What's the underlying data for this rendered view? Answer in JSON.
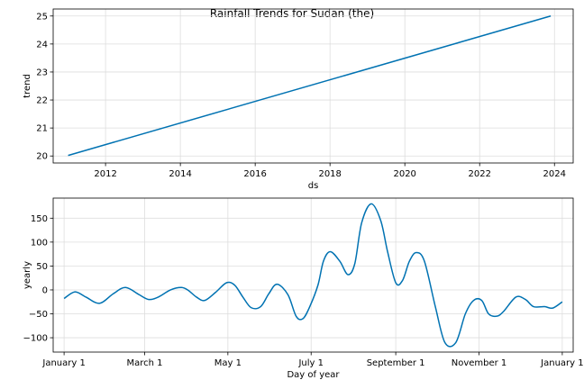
{
  "title": "Rainfall Trends for Sudan (the)",
  "colors": {
    "line": "#0072B2",
    "grid": "#dddddd",
    "axis": "#000000"
  },
  "chart_data": [
    {
      "type": "line",
      "xlabel": "ds",
      "ylabel": "trend",
      "xlim": [
        2010.6,
        2024.5
      ],
      "ylim": [
        19.75,
        25.25
      ],
      "grid": true,
      "x_ticks": [
        2012,
        2014,
        2016,
        2018,
        2020,
        2022,
        2024
      ],
      "x_tick_labels": [
        "2012",
        "2014",
        "2016",
        "2018",
        "2020",
        "2022",
        "2024"
      ],
      "y_ticks": [
        20,
        21,
        22,
        23,
        24,
        25
      ],
      "y_tick_labels": [
        "20",
        "21",
        "22",
        "23",
        "24",
        "25"
      ],
      "series": [
        {
          "x": [
            2011.0,
            2023.9
          ],
          "y": [
            20.02,
            25.0
          ]
        }
      ]
    },
    {
      "type": "line",
      "xlabel": "Day of year",
      "ylabel": "yearly",
      "xlim": [
        -8,
        373
      ],
      "ylim": [
        -130,
        192
      ],
      "grid": true,
      "x_ticks": [
        0,
        59,
        120,
        181,
        243,
        304,
        365
      ],
      "x_tick_labels": [
        "January 1",
        "March 1",
        "May 1",
        "July 1",
        "September 1",
        "November 1",
        "January 1"
      ],
      "y_ticks": [
        -100,
        -50,
        0,
        50,
        100,
        150
      ],
      "y_tick_labels": [
        "−100",
        "−50",
        "0",
        "50",
        "100",
        "150"
      ],
      "series": [
        {
          "x": [
            0,
            8,
            16,
            26,
            36,
            45,
            55,
            62,
            69,
            78,
            86,
            91,
            97,
            103,
            111,
            119,
            125,
            131,
            137,
            144,
            150,
            156,
            164,
            170,
            175,
            180,
            186,
            190,
            195,
            202,
            208,
            213,
            218,
            225,
            232,
            237,
            243,
            248,
            253,
            258,
            264,
            272,
            279,
            287,
            294,
            300,
            306,
            311,
            317,
            322,
            331,
            338,
            344,
            352,
            358,
            365
          ],
          "y": [
            -18,
            -4,
            -15,
            -28,
            -8,
            5,
            -10,
            -20,
            -15,
            0,
            5,
            -1,
            -15,
            -22,
            -5,
            15,
            10,
            -15,
            -37,
            -35,
            -8,
            12,
            -10,
            -55,
            -60,
            -35,
            10,
            60,
            80,
            60,
            32,
            55,
            140,
            180,
            145,
            80,
            15,
            20,
            60,
            78,
            60,
            -35,
            -110,
            -110,
            -50,
            -22,
            -22,
            -50,
            -55,
            -45,
            -15,
            -20,
            -35,
            -35,
            -38,
            -25
          ]
        }
      ]
    }
  ]
}
